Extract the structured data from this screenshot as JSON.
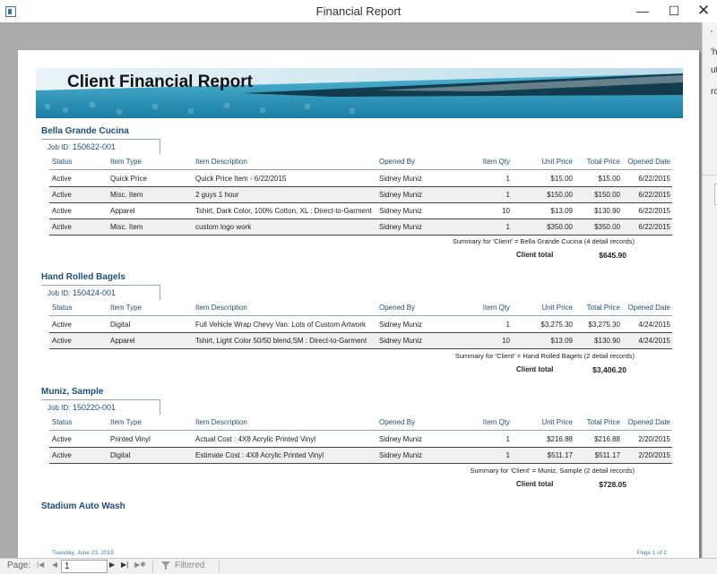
{
  "window": {
    "title": "Financial Report",
    "minimize": "—",
    "maximize": "☐",
    "close": "✕"
  },
  "right_pane": [
    "'",
    "'h",
    "ut",
    "ro"
  ],
  "report": {
    "title": "Client Financial Report",
    "columns": {
      "status": "Status",
      "type": "Item Type",
      "desc": "Item Description",
      "by": "Opened By",
      "qty": "Item Qty",
      "unit": "Unit Price",
      "total": "Total Price",
      "date": "Opened Date"
    },
    "client_total_label": "Client total",
    "clients": [
      {
        "name": "Bella Grande Cucina",
        "job_label": "Job ID:",
        "job_id": "150622-001",
        "rows": [
          {
            "status": "Active",
            "type": "Quick Price",
            "desc": "Quick Price Item - 6/22/2015",
            "by": "Sidney Muniz",
            "qty": "1",
            "unit": "$15.00",
            "total": "$15.00",
            "date": "6/22/2015"
          },
          {
            "status": "Active",
            "type": "Misc. Item",
            "desc": "2 guys 1 hour",
            "by": "Sidney Muniz",
            "qty": "1",
            "unit": "$150.00",
            "total": "$150.00",
            "date": "6/22/2015"
          },
          {
            "status": "Active",
            "type": "Apparel",
            "desc": "Tshirt, Dark Color, 100% Cotton, XL : Direct-to-Garment",
            "by": "Sidney Muniz",
            "qty": "10",
            "unit": "$13.09",
            "total": "$130.90",
            "date": "6/22/2015"
          },
          {
            "status": "Active",
            "type": "Misc. Item",
            "desc": "custom logo work",
            "by": "Sidney Muniz",
            "qty": "1",
            "unit": "$350.00",
            "total": "$350.00",
            "date": "6/22/2015"
          }
        ],
        "summary": "Summary for 'Client' = Bella Grande Cucina (4 detail records)",
        "total": "$645.90"
      },
      {
        "name": "Hand Rolled Bagels",
        "job_label": "Job ID:",
        "job_id": "150424-001",
        "rows": [
          {
            "status": "Active",
            "type": "Digital",
            "desc": "Full Vehicle Wrap Chevy Van: Lots of Custom Artwork",
            "by": "Sidney Muniz",
            "qty": "1",
            "unit": "$3,275.30",
            "total": "$3,275.30",
            "date": "4/24/2015"
          },
          {
            "status": "Active",
            "type": "Apparel",
            "desc": "Tshirt, Light Color 50/50 blend,SM : Direct-to-Garment",
            "by": "Sidney Muniz",
            "qty": "10",
            "unit": "$13.09",
            "total": "$130.90",
            "date": "4/24/2015"
          }
        ],
        "summary": "Summary for 'Client' = Hand Rolled Bagels (2 detail records)",
        "total": "$3,406.20"
      },
      {
        "name": "Muniz, Sample",
        "job_label": "Job ID:",
        "job_id": "150220-001",
        "rows": [
          {
            "status": "Active",
            "type": "Printed Vinyl",
            "desc": "Actual Cost : 4X8 Acrylic Printed Vinyl",
            "by": "Sidney Muniz",
            "qty": "1",
            "unit": "$216.88",
            "total": "$216.88",
            "date": "2/20/2015"
          },
          {
            "status": "Active",
            "type": "Digital",
            "desc": "Estimate Cost : 4X8 Acrylic Printed Vinyl",
            "by": "Sidney Muniz",
            "qty": "1",
            "unit": "$511.17",
            "total": "$511.17",
            "date": "2/20/2015"
          }
        ],
        "summary": "Summary for 'Client' = Muniz, Sample (2 detail records)",
        "total": "$728.05"
      },
      {
        "name": "Stadium Auto Wash"
      }
    ],
    "footer_date": "Tuesday, June 23, 2015",
    "footer_page": "Page 1 of 2"
  },
  "statusbar": {
    "page_label": "Page:",
    "page_value": "1",
    "nav": {
      "first": "|◀",
      "prev": "◀",
      "next": "▶",
      "last": "▶|",
      "new": "▶✱"
    },
    "filter": "Filtered"
  },
  "colors": {
    "accent": "#1f4e79",
    "banner_teal": "#2b8fb3",
    "preview_bg": "#ababab"
  }
}
